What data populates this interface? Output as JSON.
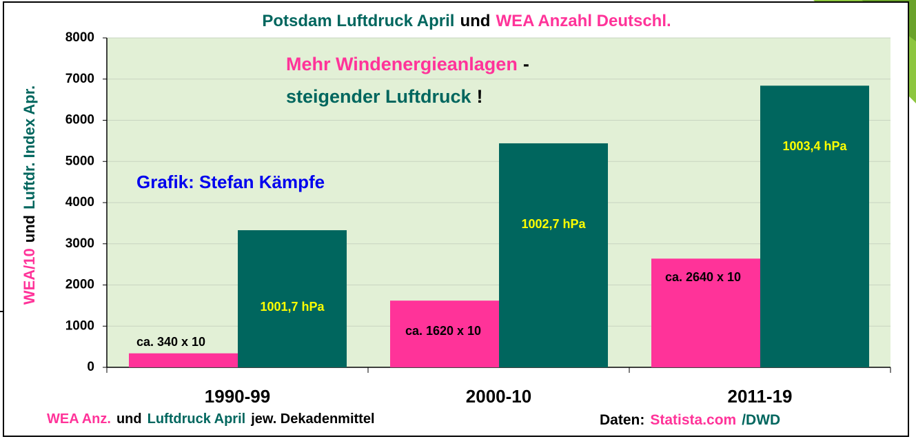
{
  "chart_data": {
    "type": "bar",
    "title_parts": [
      {
        "text": "Potsdam Luftdruck April",
        "color": "#00665e"
      },
      {
        "text": "und",
        "color": "#000000"
      },
      {
        "text": "WEA Anzahl Deutschl.",
        "color": "#ff3399"
      }
    ],
    "y_label_parts": [
      {
        "text": "WEA/10",
        "color": "#ff3399"
      },
      {
        "text": "und",
        "color": "#000000"
      },
      {
        "text": "Luftdr. Index Apr.",
        "color": "#00665e"
      }
    ],
    "annotation_lines": [
      [
        {
          "text": "Mehr Windenergieanlagen",
          "color": "#ff3399"
        },
        {
          "text": "-",
          "color": "#000000"
        }
      ],
      [
        {
          "text": "steigender Luftdruck",
          "color": "#00665e"
        },
        {
          "text": "!",
          "color": "#000000"
        }
      ]
    ],
    "credit": {
      "text": "Grafik: Stefan Kämpfe",
      "color": "#0000ee"
    },
    "footer_parts": [
      {
        "text": "WEA  Anz.",
        "color": "#ff3399"
      },
      {
        "text": "und",
        "color": "#000000"
      },
      {
        "text": "Luftdruck April",
        "color": "#00665e"
      },
      {
        "text": "jew. Dekadenmittel",
        "color": "#000000"
      }
    ],
    "source_parts": [
      {
        "text": "Daten:",
        "color": "#000000"
      },
      {
        "text": "Statista.com",
        "color": "#ff3399"
      },
      {
        "text": "/DWD",
        "color": "#00665e"
      }
    ],
    "categories": [
      "1990-99",
      "2000-10",
      "2011-19"
    ],
    "series": [
      {
        "color": "#ff3399",
        "values": [
          340,
          1620,
          2640
        ],
        "value_labels": [
          "ca. 340 x 10",
          "ca. 1620 x 10",
          "ca. 2640 x 10"
        ]
      },
      {
        "color": "#00665e",
        "values": [
          3330,
          5440,
          6840
        ],
        "notes": [
          "1001,7 hPa",
          "1002,7 hPa",
          "1003,4 hPa"
        ],
        "notes_color": "#ffff00"
      }
    ],
    "ylim": [
      0,
      8000
    ],
    "yticks": [
      0,
      1000,
      2000,
      3000,
      4000,
      5000,
      6000,
      7000,
      8000
    ],
    "grid": true,
    "plot_background": "#e2f0d6"
  }
}
